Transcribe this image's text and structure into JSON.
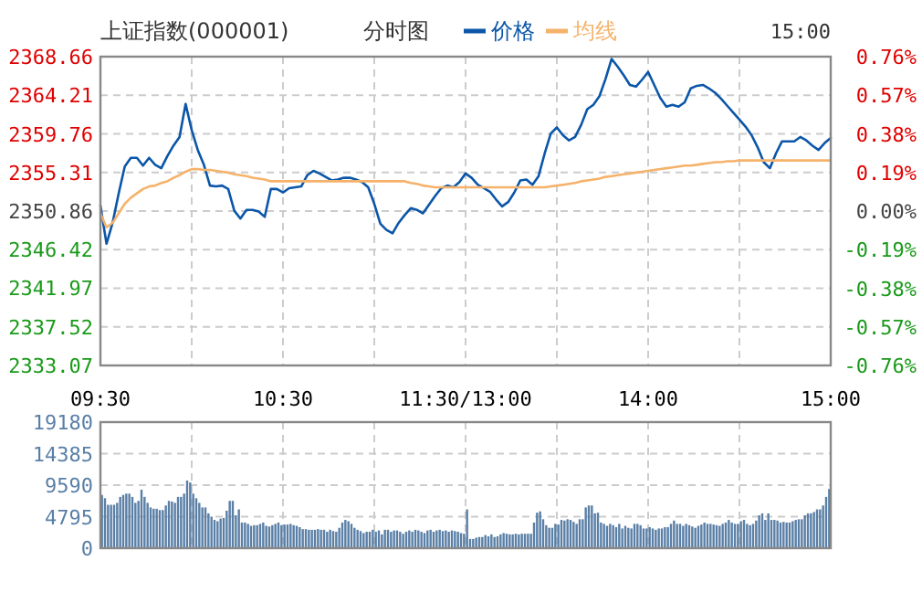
{
  "chart_data": [
    {
      "type": "line",
      "title": "上证指数(000001)",
      "subtitle": "分时图",
      "annotations": [
        "15:00"
      ],
      "legend": "top",
      "grid": true,
      "categories": [
        "09:30",
        null,
        null,
        null,
        null,
        null,
        null,
        null,
        null,
        null,
        null,
        null,
        null,
        null,
        null,
        null,
        null,
        null,
        null,
        null,
        null,
        null,
        null,
        null,
        null,
        null,
        null,
        null,
        null,
        null,
        "10:30",
        null,
        null,
        null,
        null,
        null,
        null,
        null,
        null,
        null,
        null,
        null,
        null,
        null,
        null,
        null,
        null,
        null,
        null,
        null,
        null,
        null,
        null,
        null,
        null,
        null,
        null,
        null,
        null,
        null,
        "11:30/13:00",
        null,
        null,
        null,
        null,
        null,
        null,
        null,
        null,
        null,
        null,
        null,
        null,
        null,
        null,
        null,
        null,
        null,
        null,
        null,
        null,
        null,
        null,
        null,
        null,
        null,
        null,
        null,
        null,
        null,
        "14:00",
        null,
        null,
        null,
        null,
        null,
        null,
        null,
        null,
        null,
        null,
        null,
        null,
        null,
        null,
        null,
        null,
        null,
        null,
        null,
        null,
        null,
        null,
        null,
        null,
        null,
        null,
        null,
        null,
        null,
        "15:00"
      ],
      "ylim": [
        2333.07,
        2368.66
      ],
      "yticks": [
        2333.07,
        2337.52,
        2341.97,
        2346.42,
        2350.86,
        2355.31,
        2359.76,
        2364.21,
        2368.66
      ],
      "y2lim": [
        -0.76,
        0.76
      ],
      "y2ticks": [
        {
          "value": -0.76,
          "label": "-0.76%"
        },
        {
          "value": -0.57,
          "label": "-0.57%"
        },
        {
          "value": -0.38,
          "label": "-0.38%"
        },
        {
          "value": -0.19,
          "label": "-0.19%"
        },
        {
          "value": 0,
          "label": "0.00%"
        },
        {
          "value": 0.19,
          "label": "0.19%"
        },
        {
          "value": 0.38,
          "label": "0.38%"
        },
        {
          "value": 0.57,
          "label": "0.57%"
        },
        {
          "value": 0.76,
          "label": "0.76%"
        }
      ],
      "series": [
        {
          "name": "价格",
          "color": "#0b56a8",
          "values": [
            2351.5,
            2347.1,
            2349.5,
            2352.9,
            2356.0,
            2357.0,
            2357.0,
            2356.1,
            2357.0,
            2356.2,
            2355.8,
            2357.2,
            2358.4,
            2359.4,
            2363.2,
            2360.2,
            2357.9,
            2356.2,
            2353.8,
            2353.7,
            2353.8,
            2353.4,
            2350.9,
            2350.0,
            2351.0,
            2351.0,
            2350.8,
            2350.2,
            2353.4,
            2353.4,
            2353.0,
            2353.5,
            2353.6,
            2353.7,
            2355.0,
            2355.5,
            2355.2,
            2354.8,
            2354.4,
            2354.5,
            2354.7,
            2354.7,
            2354.5,
            2354.2,
            2353.6,
            2351.7,
            2349.4,
            2348.7,
            2348.3,
            2349.5,
            2350.4,
            2351.2,
            2351.0,
            2350.6,
            2351.6,
            2352.6,
            2353.5,
            2353.8,
            2353.6,
            2354.2,
            2355.2,
            2354.7,
            2353.9,
            2353.5,
            2353.1,
            2352.2,
            2351.4,
            2351.9,
            2353.0,
            2354.4,
            2354.5,
            2353.9,
            2354.9,
            2357.5,
            2359.8,
            2360.5,
            2359.6,
            2359.0,
            2359.4,
            2360.8,
            2362.6,
            2363.1,
            2364.1,
            2366.1,
            2368.4,
            2367.5,
            2366.5,
            2365.4,
            2365.2,
            2366.0,
            2366.9,
            2365.4,
            2363.9,
            2362.9,
            2363.1,
            2362.9,
            2363.4,
            2365.0,
            2365.3,
            2365.4,
            2365.0,
            2364.5,
            2363.8,
            2363.0,
            2362.2,
            2361.4,
            2360.6,
            2359.6,
            2358.2,
            2356.5,
            2355.8,
            2357.5,
            2358.9,
            2358.9,
            2358.9,
            2359.4,
            2359.0,
            2358.4,
            2357.9,
            2358.7,
            2359.3
          ]
        },
        {
          "name": "均线",
          "color": "#f5b26b",
          "values": [
            2350.6,
            2349.0,
            2349.5,
            2350.6,
            2351.7,
            2352.4,
            2352.9,
            2353.4,
            2353.7,
            2353.8,
            2354.1,
            2354.3,
            2354.7,
            2355.0,
            2355.4,
            2355.7,
            2355.7,
            2355.6,
            2355.6,
            2355.5,
            2355.4,
            2355.3,
            2355.1,
            2355.0,
            2354.9,
            2354.7,
            2354.6,
            2354.5,
            2354.3,
            2354.3,
            2354.3,
            2354.3,
            2354.3,
            2354.3,
            2354.3,
            2354.3,
            2354.3,
            2354.3,
            2354.3,
            2354.3,
            2354.3,
            2354.3,
            2354.3,
            2354.3,
            2354.3,
            2354.3,
            2354.3,
            2354.3,
            2354.3,
            2354.3,
            2354.3,
            2354.1,
            2354.0,
            2353.8,
            2353.7,
            2353.6,
            2353.6,
            2353.6,
            2353.6,
            2353.6,
            2353.6,
            2353.6,
            2353.6,
            2353.6,
            2353.6,
            2353.6,
            2353.6,
            2353.6,
            2353.6,
            2353.6,
            2353.6,
            2353.6,
            2353.6,
            2353.6,
            2353.7,
            2353.8,
            2353.9,
            2354.0,
            2354.1,
            2354.3,
            2354.4,
            2354.5,
            2354.6,
            2354.8,
            2354.9,
            2355.0,
            2355.1,
            2355.2,
            2355.3,
            2355.4,
            2355.5,
            2355.6,
            2355.7,
            2355.8,
            2355.9,
            2356.0,
            2356.1,
            2356.1,
            2356.2,
            2356.3,
            2356.4,
            2356.5,
            2356.5,
            2356.6,
            2356.6,
            2356.7,
            2356.7,
            2356.7,
            2356.7,
            2356.7,
            2356.7,
            2356.7,
            2356.7,
            2356.7,
            2356.7,
            2356.7,
            2356.7,
            2356.7,
            2356.7,
            2356.7,
            2356.7
          ]
        }
      ]
    },
    {
      "type": "bar",
      "grid": true,
      "tick_labels": "y",
      "color": "#5a7fa6",
      "ylim": [
        0,
        19180
      ],
      "yticks": [
        0,
        4795,
        9590,
        14385,
        19180
      ],
      "categories": [
        null,
        null,
        null,
        null,
        null,
        null,
        null,
        null,
        null,
        null,
        null,
        null,
        null,
        null,
        null,
        null,
        null,
        null,
        null,
        null,
        null,
        null,
        null,
        null,
        null,
        null,
        null,
        null,
        null,
        null,
        null,
        null,
        null,
        null,
        null,
        null,
        null,
        null,
        null,
        null,
        null,
        null,
        null,
        null,
        null,
        null,
        null,
        null,
        null,
        null,
        null,
        null,
        null,
        null,
        null,
        null,
        null,
        null,
        null,
        null,
        null,
        null,
        null,
        null,
        null,
        null,
        null,
        null,
        null,
        null,
        null,
        null,
        null,
        null,
        null,
        null,
        null,
        null,
        null,
        null,
        null,
        null,
        null,
        null,
        null,
        null,
        null,
        null,
        null,
        null,
        null,
        null,
        null,
        null,
        null,
        null,
        null,
        null,
        null,
        null,
        null,
        null,
        null,
        null,
        null,
        null,
        null,
        null,
        null,
        null,
        null,
        null,
        null,
        null,
        null,
        null,
        null,
        null,
        null,
        null,
        null,
        null,
        null,
        null,
        null,
        null,
        null,
        null,
        null,
        null,
        null,
        null,
        null,
        null,
        null,
        null,
        null,
        null,
        null,
        null,
        null,
        null,
        null,
        null,
        null,
        null,
        null,
        null,
        null,
        null,
        null,
        null,
        null,
        null,
        null,
        null,
        null,
        null,
        null,
        null,
        null,
        null,
        null,
        null,
        null,
        null,
        null,
        null,
        null,
        null,
        null,
        null,
        null,
        null,
        null,
        null,
        null,
        null,
        null,
        null,
        null,
        null,
        null,
        null,
        null,
        null,
        null,
        null,
        null,
        null,
        null,
        null,
        null,
        null,
        null,
        null,
        null,
        null,
        null,
        null,
        null,
        null,
        null,
        null,
        null,
        null,
        null,
        null,
        null,
        null,
        null,
        null,
        null,
        null,
        null,
        null,
        null,
        null,
        null,
        null,
        null,
        null,
        null,
        null,
        null,
        null,
        null,
        null,
        null,
        null,
        null,
        null,
        null,
        null,
        null,
        null,
        null,
        null,
        null,
        null
      ],
      "values": [
        8100,
        7600,
        6600,
        6600,
        6600,
        6900,
        7800,
        8100,
        8300,
        8300,
        7800,
        6900,
        7200,
        8900,
        7800,
        6900,
        6200,
        6000,
        6000,
        5800,
        5800,
        6500,
        7200,
        7100,
        6900,
        7800,
        7800,
        8300,
        10300,
        10000,
        8300,
        7600,
        6900,
        6200,
        6200,
        5300,
        4800,
        4300,
        4100,
        4500,
        4600,
        5700,
        7200,
        7200,
        5000,
        5900,
        3900,
        3900,
        3700,
        3400,
        3500,
        3500,
        3700,
        3900,
        3400,
        3300,
        3500,
        3700,
        3900,
        3500,
        3600,
        3600,
        3700,
        3500,
        3400,
        3200,
        2900,
        2900,
        2800,
        2800,
        2800,
        2900,
        2800,
        2800,
        2500,
        2800,
        2600,
        2500,
        3100,
        3900,
        4300,
        4100,
        3700,
        3100,
        2800,
        2600,
        2300,
        2500,
        2500,
        2800,
        2500,
        2700,
        2100,
        2800,
        2800,
        2500,
        2700,
        2700,
        2500,
        2200,
        2500,
        2700,
        2500,
        2800,
        2700,
        2500,
        2300,
        2700,
        2800,
        2500,
        2700,
        2800,
        2600,
        2700,
        2500,
        2700,
        2600,
        2500,
        2300,
        2200,
        5900,
        1400,
        1400,
        1600,
        1700,
        1700,
        2000,
        1800,
        2100,
        1700,
        1800,
        2100,
        2300,
        2200,
        2100,
        2100,
        2200,
        2100,
        2200,
        2200,
        2200,
        2200,
        3900,
        5400,
        5600,
        4400,
        3500,
        3100,
        3100,
        3700,
        3600,
        4300,
        4200,
        4400,
        4300,
        4000,
        3700,
        4400,
        4400,
        6200,
        6500,
        6500,
        5300,
        5400,
        3900,
        3700,
        3400,
        3700,
        3500,
        3200,
        3700,
        3000,
        3400,
        3100,
        3000,
        3700,
        3700,
        3500,
        3000,
        3000,
        3200,
        3000,
        2800,
        3000,
        3000,
        3200,
        3200,
        3700,
        4200,
        3700,
        3700,
        3400,
        3700,
        3500,
        3300,
        3100,
        3400,
        3600,
        3900,
        3700,
        3700,
        3600,
        3500,
        3400,
        3700,
        3900,
        4300,
        3900,
        3700,
        3700,
        4100,
        4300,
        3700,
        3500,
        3700,
        4200,
        5000,
        5300,
        4300,
        5300,
        4300,
        4300,
        4200,
        3900,
        4000,
        3900,
        3900,
        4100,
        4300,
        4400,
        4400,
        5000,
        5300,
        5300,
        5500,
        5900,
        5900,
        6500,
        7800,
        9000
      ]
    }
  ]
}
